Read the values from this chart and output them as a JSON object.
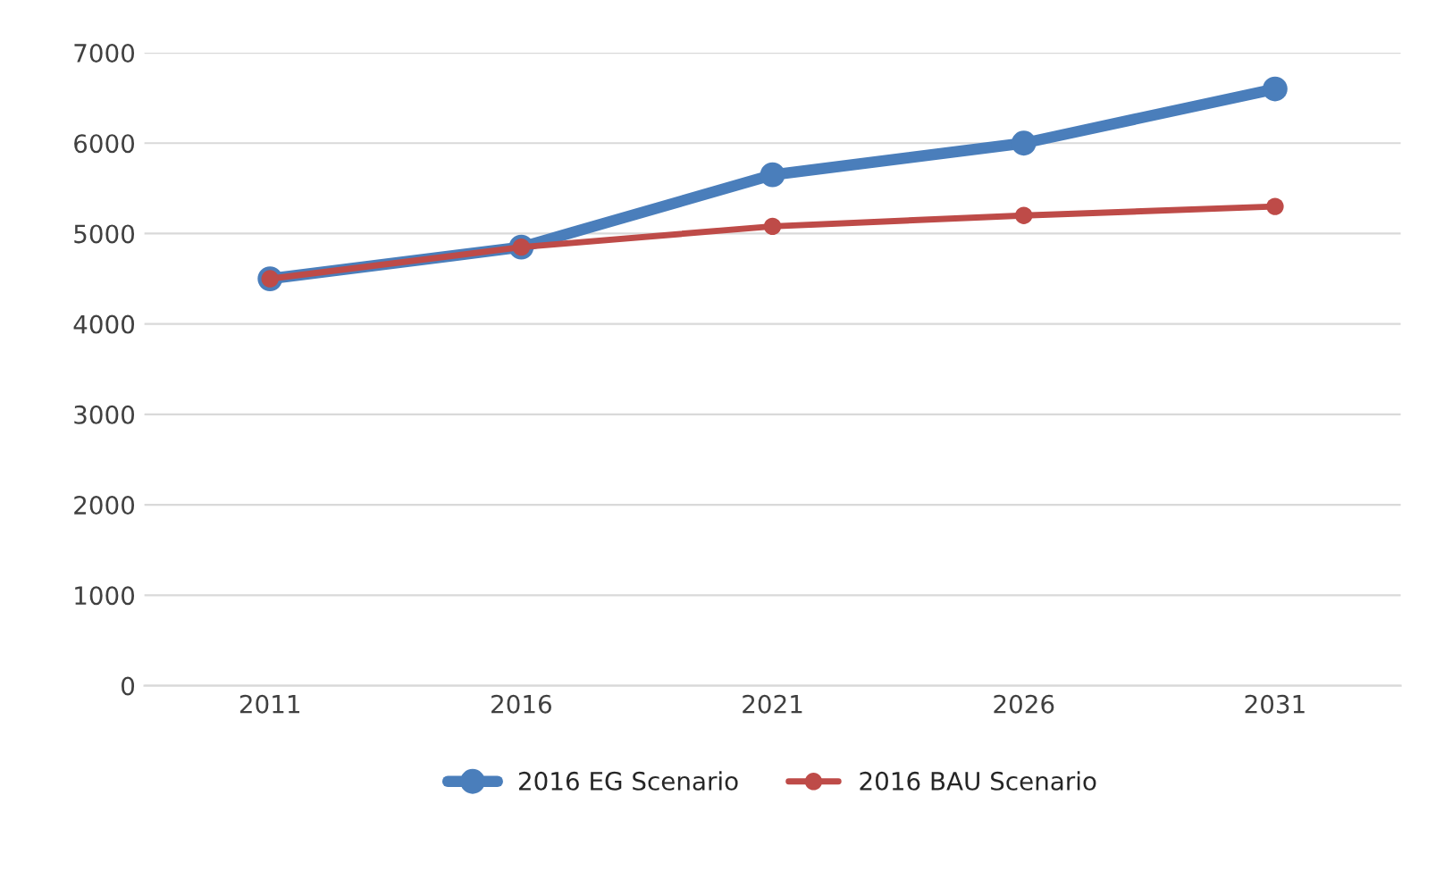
{
  "chart_data": {
    "type": "line",
    "categories": [
      "2011",
      "2016",
      "2021",
      "2026",
      "2031"
    ],
    "series": [
      {
        "name": "2016 EG Scenario",
        "color": "#4a7ebb",
        "values": [
          4500,
          4850,
          5650,
          6000,
          6600
        ]
      },
      {
        "name": "2016 BAU Scenario",
        "color": "#be4b48",
        "values": [
          4500,
          4850,
          5080,
          5200,
          5300
        ]
      }
    ],
    "ylim": [
      0,
      7000
    ],
    "yticks": [
      0,
      1000,
      2000,
      3000,
      4000,
      5000,
      6000,
      7000
    ],
    "grid": "y",
    "legend": "bottom",
    "marker": "circle",
    "line_style": "solid"
  }
}
